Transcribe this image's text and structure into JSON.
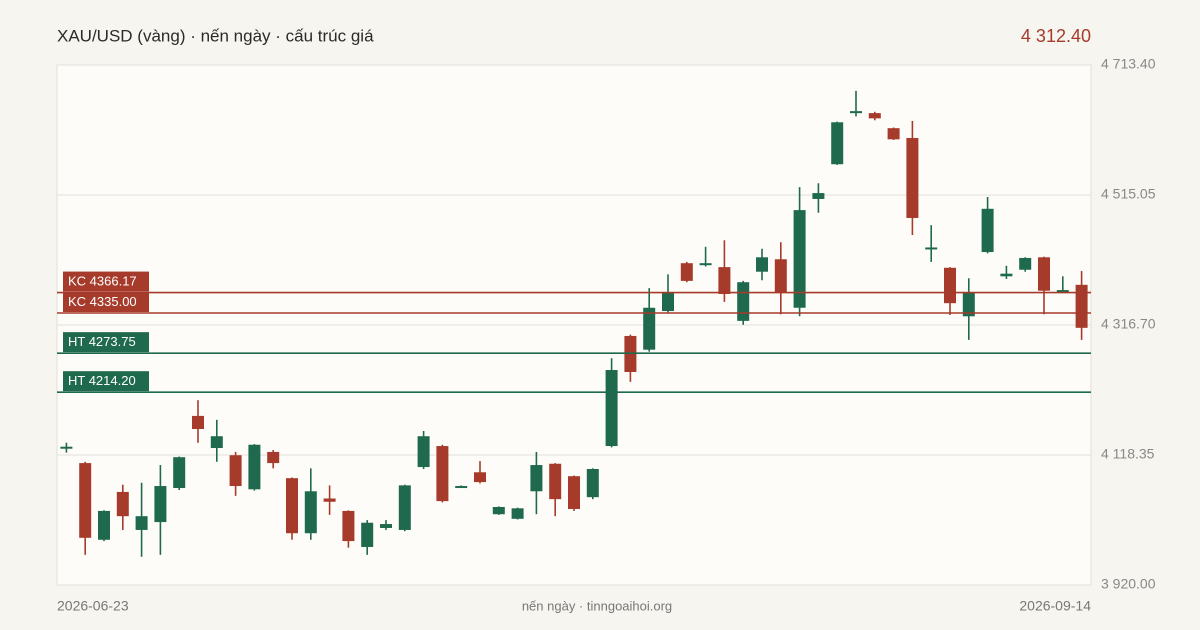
{
  "chart_data": {
    "type": "candlestick",
    "title": "XAU/USD (vàng) · nến ngày · cấu trúc giá",
    "last_price": "4 312.40",
    "footer": "nến ngày · tinngoaihoi.org",
    "categories": [
      "2026-06-23",
      null,
      null,
      null,
      null,
      null,
      null,
      null,
      null,
      null,
      null,
      null,
      null,
      null,
      null,
      null,
      null,
      null,
      null,
      null,
      null,
      null,
      null,
      null,
      null,
      null,
      null,
      null,
      null,
      null,
      null,
      null,
      null,
      null,
      null,
      null,
      null,
      null,
      null,
      null,
      null,
      null,
      null,
      null,
      null,
      null,
      null,
      null,
      null,
      null,
      null,
      null,
      null,
      null,
      "2026-09-14"
    ],
    "open": [
      4129,
      4106,
      3989,
      4062,
      4004,
      4016,
      4068,
      4178,
      4129,
      4118,
      4066,
      4123,
      4083,
      3999,
      4052,
      4033,
      3978,
      4007,
      4004,
      4100,
      4132,
      4069,
      4092,
      4028,
      4021,
      4063,
      4105,
      4086,
      4054,
      4132,
      4300,
      4279,
      4338,
      4411,
      4408,
      4405,
      4323,
      4398,
      4417,
      4343,
      4509,
      4562,
      4640,
      4640,
      4617,
      4602,
      4432,
      4404,
      4330,
      4428,
      4391,
      4401,
      4420,
      4368,
      4378
    ],
    "high": [
      4137,
      4108,
      4034,
      4073,
      4076,
      4103,
      4116,
      4202,
      4172,
      4123,
      4135,
      4126,
      4084,
      4098,
      4072,
      4034,
      4019,
      4019,
      4073,
      4155,
      4134,
      4072,
      4109,
      4040,
      4038,
      4123,
      4106,
      4087,
      4098,
      4266,
      4302,
      4373,
      4394,
      4413,
      4436,
      4446,
      4384,
      4433,
      4443,
      4527,
      4533,
      4627,
      4674,
      4642,
      4618,
      4628,
      4469,
      4405,
      4388,
      4512,
      4407,
      4420,
      4421,
      4391,
      4399
    ],
    "low": [
      4122,
      3966,
      3987,
      4004,
      3963,
      3966,
      4065,
      4137,
      4108,
      4056,
      4064,
      4098,
      3989,
      3989,
      4027,
      3977,
      3966,
      4004,
      4002,
      4097,
      4046,
      4068,
      4075,
      4027,
      4020,
      4028,
      4025,
      4033,
      4051,
      4130,
      4230,
      4276,
      4336,
      4382,
      4406,
      4352,
      4317,
      4385,
      4333,
      4330,
      4488,
      4561,
      4635,
      4629,
      4599,
      4454,
      4413,
      4332,
      4294,
      4426,
      4387,
      4398,
      4333,
      4366,
      4294
    ],
    "close": [
      4131,
      3992,
      4033,
      4025,
      4025,
      4071,
      4115,
      4158,
      4147,
      4071,
      4134,
      4106,
      3999,
      4063,
      4047,
      3987,
      4015,
      4013,
      4072,
      4147,
      4048,
      4071,
      4077,
      4039,
      4037,
      4103,
      4051,
      4036,
      4097,
      4248,
      4245,
      4343,
      4366,
      4384,
      4411,
      4364,
      4382,
      4420,
      4367,
      4492,
      4518,
      4626,
      4643,
      4632,
      4600,
      4480,
      4435,
      4350,
      4367,
      4494,
      4395,
      4419,
      4369,
      4370,
      4312.4
    ],
    "up_color": "#1f6a4e",
    "down_color": "#a63b2b",
    "levels": [
      {
        "label": "KC 4366.17",
        "value": 4366.17,
        "color": "#a63b2b"
      },
      {
        "label": "KC 4335.00",
        "value": 4335.0,
        "color": "#a63b2b"
      },
      {
        "label": "HT 4273.75",
        "value": 4273.75,
        "color": "#1f6a4e"
      },
      {
        "label": "HT 4214.20",
        "value": 4214.2,
        "color": "#1f6a4e"
      }
    ],
    "ylim": [
      3920.0,
      4713.4
    ],
    "yticks": [
      {
        "value": 3920.0,
        "label": "3 920.00"
      },
      {
        "value": 4118.35,
        "label": "4 118.35"
      },
      {
        "value": 4316.7,
        "label": "4 316.70"
      },
      {
        "value": 4515.05,
        "label": "4 515.05"
      },
      {
        "value": 4713.4,
        "label": "4 713.40"
      }
    ],
    "grid": true
  }
}
